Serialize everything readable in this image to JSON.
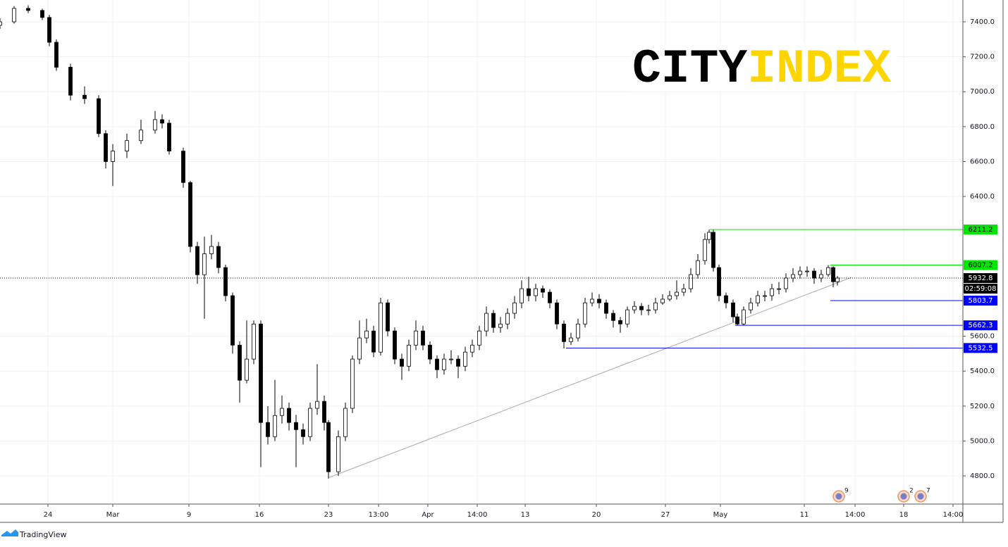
{
  "chart_data": {
    "type": "candlestick",
    "x": [
      0,
      1,
      2,
      3,
      3.5,
      4,
      5,
      6,
      7,
      7.5,
      8,
      9,
      10,
      11,
      11.5,
      12,
      13,
      13.5,
      14,
      14.5,
      15,
      15.5,
      16,
      16.5,
      17,
      17.5,
      18,
      18.5,
      19,
      19.5,
      20,
      20.5,
      21,
      21.5,
      22,
      22.5,
      23,
      23.3,
      24,
      24.5,
      25,
      25.5,
      26,
      26.5,
      27,
      27.5,
      28,
      28.5,
      29,
      29.5,
      30,
      30.5,
      31,
      31.5,
      32,
      32.5,
      33,
      33.5,
      34,
      34.5,
      35,
      35.5,
      36,
      36.5,
      37,
      37.5,
      38,
      38.5,
      39,
      39.5,
      40,
      40.5,
      41,
      41.5,
      42,
      42.5,
      43,
      43.5,
      44,
      44.5,
      45,
      45.5,
      46,
      46.5,
      47,
      47.5,
      48,
      48.5,
      49,
      49.5,
      50,
      50.3,
      50.6,
      51,
      51.5,
      52,
      52.3,
      52.75,
      53.25,
      53.75,
      54.25,
      54.75,
      55.25,
      55.75,
      56.25,
      56.75,
      57.25,
      57.75,
      58.25,
      58.75,
      59.1,
      59.4
    ],
    "open": [
      7380,
      7400,
      7477,
      7465,
      7425,
      7283,
      7140,
      6980,
      6960,
      6760,
      6600,
      6660,
      6720,
      6780,
      6840,
      6820,
      6660,
      6480,
      6114,
      5952,
      6072,
      6114,
      5993,
      5832,
      5549,
      5348,
      5469,
      5670,
      5106,
      5025,
      5146,
      5187,
      5106,
      5065,
      5025,
      5187,
      5227,
      5106,
      4824,
      5025,
      5187,
      5469,
      5590,
      5630,
      5509,
      5791,
      5630,
      5469,
      5428,
      5549,
      5630,
      5549,
      5469,
      5408,
      5469,
      5469,
      5428,
      5509,
      5549,
      5630,
      5731,
      5650,
      5670,
      5731,
      5791,
      5872,
      5832,
      5872,
      5852,
      5791,
      5670,
      5569,
      5590,
      5670,
      5791,
      5812,
      5791,
      5731,
      5690,
      5670,
      5751,
      5771,
      5751,
      5751,
      5791,
      5812,
      5832,
      5852,
      5872,
      5953,
      6033,
      6154,
      6195,
      5993,
      5832,
      5791,
      5711,
      5670,
      5751,
      5791,
      5832,
      5832,
      5872,
      5872,
      5933,
      5953,
      5973,
      5973,
      5933,
      5953,
      5993,
      5912
    ],
    "high": [
      7420,
      7490,
      7495,
      7475,
      7440,
      7300,
      7160,
      7030,
      6980,
      6780,
      6700,
      6760,
      6840,
      6890,
      6870,
      6840,
      6680,
      6490,
      6140,
      6170,
      6180,
      6140,
      6010,
      5850,
      5570,
      5690,
      5690,
      5690,
      5200,
      5350,
      5260,
      5220,
      5150,
      5100,
      5220,
      5440,
      5260,
      5120,
      5060,
      5220,
      5490,
      5690,
      5700,
      5660,
      5820,
      5810,
      5650,
      5500,
      5580,
      5690,
      5660,
      5570,
      5490,
      5500,
      5520,
      5490,
      5540,
      5580,
      5660,
      5770,
      5750,
      5710,
      5760,
      5830,
      5920,
      5940,
      5900,
      5890,
      5870,
      5810,
      5690,
      5620,
      5700,
      5820,
      5850,
      5840,
      5810,
      5750,
      5710,
      5770,
      5800,
      5790,
      5780,
      5820,
      5840,
      5860,
      5920,
      5900,
      5990,
      6070,
      6190,
      6211,
      6210,
      6010,
      5850,
      5810,
      5730,
      5770,
      5820,
      5860,
      5860,
      5900,
      5910,
      5960,
      5990,
      6000,
      6000,
      5990,
      5980,
      6007,
      6000,
      5945
    ],
    "low": [
      7360,
      7390,
      7450,
      7410,
      7260,
      7120,
      6950,
      6930,
      6740,
      6560,
      6460,
      6620,
      6700,
      6760,
      6790,
      6640,
      6450,
      6080,
      5900,
      5700,
      6040,
      5960,
      5800,
      5500,
      5220,
      5330,
      5440,
      4850,
      4980,
      5000,
      5100,
      5060,
      4850,
      4980,
      5000,
      5150,
      5060,
      4785,
      4800,
      5000,
      5160,
      5440,
      5560,
      5480,
      5490,
      5600,
      5440,
      5350,
      5400,
      5520,
      5520,
      5440,
      5360,
      5380,
      5440,
      5360,
      5400,
      5480,
      5520,
      5600,
      5620,
      5620,
      5640,
      5700,
      5760,
      5800,
      5800,
      5820,
      5760,
      5640,
      5530,
      5550,
      5570,
      5650,
      5770,
      5760,
      5700,
      5650,
      5620,
      5650,
      5730,
      5720,
      5720,
      5730,
      5780,
      5800,
      5810,
      5830,
      5850,
      5930,
      6010,
      6130,
      5970,
      5800,
      5760,
      5680,
      5662,
      5662,
      5730,
      5770,
      5800,
      5804,
      5840,
      5850,
      5910,
      5930,
      5940,
      5900,
      5910,
      5940,
      5880,
      5890
    ],
    "close": [
      7400,
      7477,
      7465,
      7425,
      7283,
      7140,
      6980,
      6960,
      6760,
      6600,
      6660,
      6720,
      6780,
      6840,
      6820,
      6660,
      6480,
      6114,
      5952,
      6072,
      6114,
      5993,
      5832,
      5549,
      5348,
      5469,
      5670,
      5106,
      5025,
      5146,
      5187,
      5106,
      5065,
      5025,
      5187,
      5227,
      5106,
      4824,
      5025,
      5187,
      5469,
      5590,
      5630,
      5509,
      5791,
      5630,
      5469,
      5428,
      5549,
      5630,
      5549,
      5469,
      5408,
      5469,
      5469,
      5428,
      5509,
      5549,
      5630,
      5731,
      5650,
      5670,
      5731,
      5791,
      5872,
      5832,
      5872,
      5852,
      5791,
      5670,
      5569,
      5590,
      5670,
      5791,
      5812,
      5791,
      5731,
      5690,
      5670,
      5751,
      5771,
      5751,
      5751,
      5791,
      5812,
      5832,
      5852,
      5872,
      5953,
      6033,
      6154,
      6195,
      5993,
      5832,
      5791,
      5711,
      5670,
      5751,
      5791,
      5832,
      5832,
      5872,
      5872,
      5933,
      5953,
      5973,
      5973,
      5933,
      5953,
      5993,
      5912,
      5933
    ],
    "up_color": "#ffffff",
    "down_color": "#000000",
    "wick_color": "#000000",
    "xlim": [
      0,
      68.3
    ],
    "xticks": [
      {
        "value": 3.4,
        "label": "24"
      },
      {
        "value": 8,
        "label": "Mar"
      },
      {
        "value": 13.4,
        "label": "9"
      },
      {
        "value": 18.4,
        "label": "16"
      },
      {
        "value": 23.3,
        "label": "23"
      },
      {
        "value": 26.85,
        "label": "13:00"
      },
      {
        "value": 30.35,
        "label": "Apr"
      },
      {
        "value": 33.85,
        "label": "14:00"
      },
      {
        "value": 37.25,
        "label": "13"
      },
      {
        "value": 42.3,
        "label": "20"
      },
      {
        "value": 47.2,
        "label": "27"
      },
      {
        "value": 51.1,
        "label": "May"
      },
      {
        "value": 57.05,
        "label": "11"
      },
      {
        "value": 60.65,
        "label": "14:00"
      },
      {
        "value": 64.1,
        "label": "18"
      },
      {
        "value": 67.6,
        "label": "14:00"
      }
    ],
    "ylim": [
      4639,
      7525
    ],
    "yticks": [
      {
        "value": 7400,
        "label": "7400.0"
      },
      {
        "value": 7200,
        "label": "7200.0"
      },
      {
        "value": 7000,
        "label": "7000.0"
      },
      {
        "value": 6800,
        "label": "6800.0"
      },
      {
        "value": 6600,
        "label": "6600.0"
      },
      {
        "value": 6400,
        "label": "6400.0"
      },
      {
        "value": 5600,
        "label": "5600.0"
      },
      {
        "value": 5400,
        "label": "5400.0"
      },
      {
        "value": 5200,
        "label": "5200.0"
      },
      {
        "value": 5000,
        "label": "5000.0"
      },
      {
        "value": 4800,
        "label": "4800.0"
      }
    ],
    "grid": true,
    "levels": [
      {
        "value": 6211.2,
        "from": 50.35,
        "color": "#00e600",
        "label_color": "#000000"
      },
      {
        "value": 6007.2,
        "from": 58.9,
        "color": "#00e600",
        "label_color": "#000000"
      },
      {
        "value": 5803.7,
        "from": 58.9,
        "color": "#0000ff",
        "label_color": "#ffffff"
      },
      {
        "value": 5662.3,
        "from": 52.15,
        "color": "#0000ff",
        "label_color": "#ffffff"
      },
      {
        "value": 5532.5,
        "from": 40.15,
        "color": "#0000ff",
        "label_color": "#ffffff"
      }
    ],
    "last_price": {
      "value": 5932.8,
      "countdown": "02:59:08",
      "color": "#000000"
    },
    "trendline": {
      "x": [
        23.3,
        60.4
      ],
      "y": [
        4790,
        5937
      ],
      "color": "#a8a8a8"
    },
    "events": [
      {
        "x": 59.5,
        "count": 9
      },
      {
        "x": 64.1,
        "count": 2
      },
      {
        "x": 65.3,
        "count": 7
      }
    ],
    "logo": {
      "left": "CITY",
      "right": "INDEX"
    },
    "footer": "TradingView"
  }
}
